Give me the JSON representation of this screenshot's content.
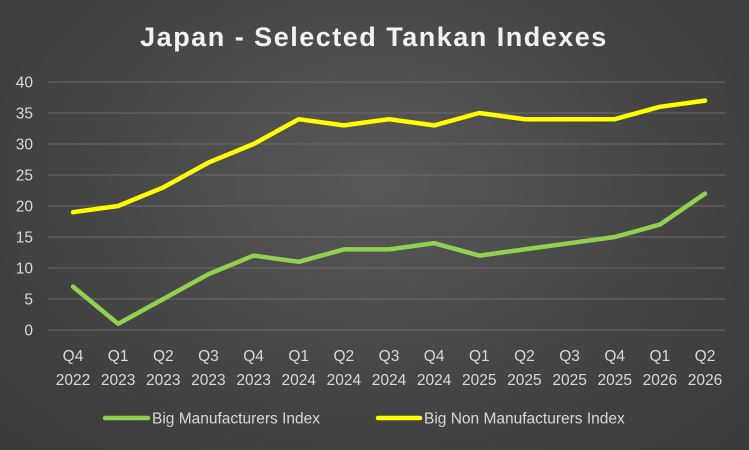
{
  "chart_data": {
    "type": "line",
    "title": "Japan - Selected Tankan Indexes",
    "xlabel": "",
    "ylabel": "",
    "categories": [
      [
        "Q4",
        "2022"
      ],
      [
        "Q1",
        "2023"
      ],
      [
        "Q2",
        "2023"
      ],
      [
        "Q3",
        "2023"
      ],
      [
        "Q4",
        "2023"
      ],
      [
        "Q1",
        "2024"
      ],
      [
        "Q2",
        "2024"
      ],
      [
        "Q3",
        "2024"
      ],
      [
        "Q4",
        "2024"
      ],
      [
        "Q1",
        "2025"
      ],
      [
        "Q2",
        "2025"
      ],
      [
        "Q3",
        "2025"
      ],
      [
        "Q4",
        "2025"
      ],
      [
        "Q1",
        "2026"
      ],
      [
        "Q2",
        "2026"
      ]
    ],
    "ylim": [
      0,
      40
    ],
    "yticks": [
      0,
      5,
      10,
      15,
      20,
      25,
      30,
      35,
      40
    ],
    "grid": true,
    "legend_position": "bottom",
    "series": [
      {
        "name": "Big Manufacturers Index",
        "color": "#92d050",
        "values": [
          7,
          1,
          5,
          9,
          12,
          11,
          13,
          13,
          14,
          12,
          13,
          14,
          15,
          17,
          22
        ]
      },
      {
        "name": "Big Non Manufacturers Index",
        "color": "#ffff00",
        "values": [
          19,
          20,
          23,
          27,
          30,
          34,
          33,
          34,
          33,
          35,
          34,
          34,
          34,
          36,
          37
        ]
      }
    ]
  }
}
